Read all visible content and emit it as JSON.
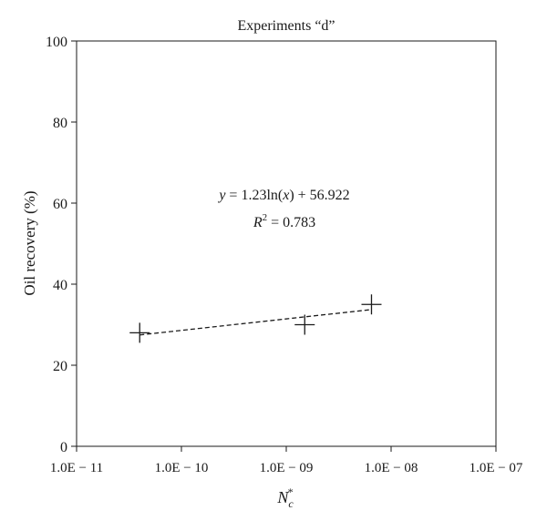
{
  "chart_data": {
    "type": "scatter",
    "title": "Experiments “d”",
    "xlabel_main": "N",
    "xlabel_sub": "c",
    "xlabel_sup": "*",
    "ylabel": "Oil recovery (%)",
    "xscale": "log",
    "xlim": [
      1e-11,
      1e-07
    ],
    "ylim": [
      0,
      100
    ],
    "yticks": [
      0,
      20,
      40,
      60,
      80,
      100
    ],
    "xticks": [
      1e-11,
      1e-10,
      1e-09,
      1e-08,
      1e-07
    ],
    "xtick_labels": [
      "1.0E − 11",
      "1.0E − 10",
      "1.0E − 09",
      "1.0E − 08",
      "1.0E − 07"
    ],
    "grid": false,
    "legend": "none",
    "points": [
      {
        "x": 4e-11,
        "y": 28
      },
      {
        "x": 1.5e-09,
        "y": 30
      },
      {
        "x": 6.5e-09,
        "y": 35
      }
    ],
    "trendline": {
      "type": "logarithmic",
      "a": 1.23,
      "b": 56.922,
      "x_range": [
        4e-11,
        6.5e-09
      ],
      "equation_y": "y",
      "equation_rest": " = 1.23ln(",
      "equation_x": "x",
      "equation_end": ") + 56.922",
      "r2_label": "R",
      "r2_sup": "2",
      "r2_value": " = 0.783"
    },
    "colors": {
      "ink": "#1a1a1a",
      "background": "#ffffff"
    }
  }
}
